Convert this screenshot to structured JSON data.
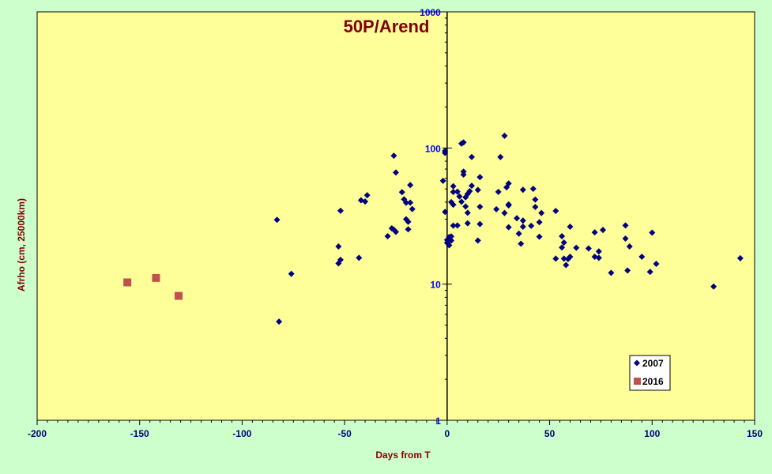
{
  "chart_data": {
    "type": "scatter",
    "title": "50P/Arend",
    "xlabel": "Days from T",
    "ylabel": "Afrho (cm, 25000km)",
    "xlim": [
      -200,
      150
    ],
    "ylim": [
      1,
      1000
    ],
    "y_scale": "log",
    "x_ticks": [
      -200,
      -150,
      -100,
      -50,
      0,
      50,
      100,
      150
    ],
    "x_tick_labels": [
      "-200",
      "-150",
      "-100",
      "-50",
      "0",
      "50",
      "100",
      "150"
    ],
    "y_ticks": [
      1,
      10,
      100,
      1000
    ],
    "y_tick_labels": [
      "1",
      "10",
      "100",
      "1000"
    ],
    "grid": false,
    "legend_position": "bottom-right",
    "colors": {
      "plot_background": "#ffff99",
      "outer_background": "#ccffcc",
      "series_2007": "#000080",
      "series_2016": "#c0504d",
      "title": "#800000",
      "tick_labels_x": "#000080",
      "tick_labels_y": "#0000ff"
    },
    "series": [
      {
        "name": "2007",
        "marker": "diamond",
        "color": "#000080",
        "points": [
          [
            -83,
            29.7
          ],
          [
            -82,
            5.3
          ],
          [
            -76,
            11.9
          ],
          [
            -53,
            14.2
          ],
          [
            -53,
            18.9
          ],
          [
            -52,
            15.1
          ],
          [
            -52,
            34.6
          ],
          [
            -43,
            15.6
          ],
          [
            -42,
            41.3
          ],
          [
            -40,
            40.4
          ],
          [
            -39,
            45.0
          ],
          [
            -29,
            22.5
          ],
          [
            -27,
            25.7
          ],
          [
            -26,
            25.1
          ],
          [
            -26,
            87.8
          ],
          [
            -25,
            66.0
          ],
          [
            -25,
            24.2
          ],
          [
            -22,
            47.4
          ],
          [
            -21,
            42.0
          ],
          [
            -20,
            30.0
          ],
          [
            -20,
            39.6
          ],
          [
            -19,
            25.3
          ],
          [
            -19,
            28.7
          ],
          [
            -18,
            53.4
          ],
          [
            -18,
            39.7
          ],
          [
            -17,
            35.6
          ],
          [
            -2,
            57.4
          ],
          [
            -1,
            95.0
          ],
          [
            -1,
            92.0
          ],
          [
            -1,
            33.9
          ],
          [
            0,
            20.1
          ],
          [
            0,
            21.1
          ],
          [
            1,
            22.2
          ],
          [
            1,
            19.3
          ],
          [
            1,
            21.8
          ],
          [
            2,
            40.0
          ],
          [
            2,
            20.9
          ],
          [
            2,
            22.4
          ],
          [
            3,
            52.4
          ],
          [
            3,
            38.3
          ],
          [
            3,
            47.5
          ],
          [
            3,
            26.9
          ],
          [
            5,
            47.8
          ],
          [
            5,
            27.0
          ],
          [
            6,
            44.1
          ],
          [
            7,
            107.7
          ],
          [
            7,
            40.3
          ],
          [
            8,
            110.0
          ],
          [
            8,
            63.8
          ],
          [
            8,
            67.1
          ],
          [
            9,
            43.4
          ],
          [
            9,
            37.2
          ],
          [
            10,
            33.4
          ],
          [
            10,
            46.0
          ],
          [
            10,
            28.0
          ],
          [
            11,
            48.2
          ],
          [
            12,
            85.9
          ],
          [
            12,
            52.8
          ],
          [
            15,
            20.9
          ],
          [
            15,
            49.2
          ],
          [
            16,
            61.1
          ],
          [
            16,
            27.6
          ],
          [
            16,
            37.0
          ],
          [
            24,
            35.5
          ],
          [
            25,
            47.6
          ],
          [
            26,
            85.8
          ],
          [
            28,
            123.0
          ],
          [
            28,
            33.3
          ],
          [
            29,
            51.4
          ],
          [
            30,
            37.9
          ],
          [
            30,
            26.2
          ],
          [
            30,
            38.5
          ],
          [
            30,
            54.9
          ],
          [
            34,
            30.5
          ],
          [
            35,
            23.5
          ],
          [
            36,
            19.8
          ],
          [
            37,
            49.3
          ],
          [
            37,
            26.4
          ],
          [
            37,
            29.3
          ],
          [
            41,
            26.8
          ],
          [
            42,
            50.1
          ],
          [
            43,
            41.8
          ],
          [
            43,
            36.9
          ],
          [
            45,
            28.5
          ],
          [
            45,
            22.3
          ],
          [
            46,
            33.3
          ],
          [
            53,
            34.5
          ],
          [
            53,
            15.4
          ],
          [
            56,
            22.5
          ],
          [
            56,
            18.6
          ],
          [
            57,
            20.2
          ],
          [
            57,
            15.4
          ],
          [
            58,
            13.8
          ],
          [
            59,
            15.3
          ],
          [
            60,
            15.9
          ],
          [
            60,
            26.4
          ],
          [
            63,
            18.5
          ],
          [
            69,
            18.3
          ],
          [
            72,
            24.0
          ],
          [
            72,
            15.9
          ],
          [
            74,
            17.4
          ],
          [
            74,
            15.6
          ],
          [
            76,
            25.0
          ],
          [
            80,
            12.1
          ],
          [
            87,
            27.0
          ],
          [
            87,
            21.6
          ],
          [
            88,
            12.6
          ],
          [
            89,
            18.9
          ],
          [
            95,
            15.9
          ],
          [
            99,
            12.3
          ],
          [
            100,
            23.9
          ],
          [
            102,
            14.1
          ],
          [
            130,
            9.6
          ],
          [
            143,
            15.5
          ]
        ]
      },
      {
        "name": "2016",
        "marker": "square",
        "color": "#c0504d",
        "points": [
          [
            -156,
            10.3
          ],
          [
            -142,
            11.1
          ],
          [
            -131,
            8.2
          ]
        ]
      }
    ]
  }
}
